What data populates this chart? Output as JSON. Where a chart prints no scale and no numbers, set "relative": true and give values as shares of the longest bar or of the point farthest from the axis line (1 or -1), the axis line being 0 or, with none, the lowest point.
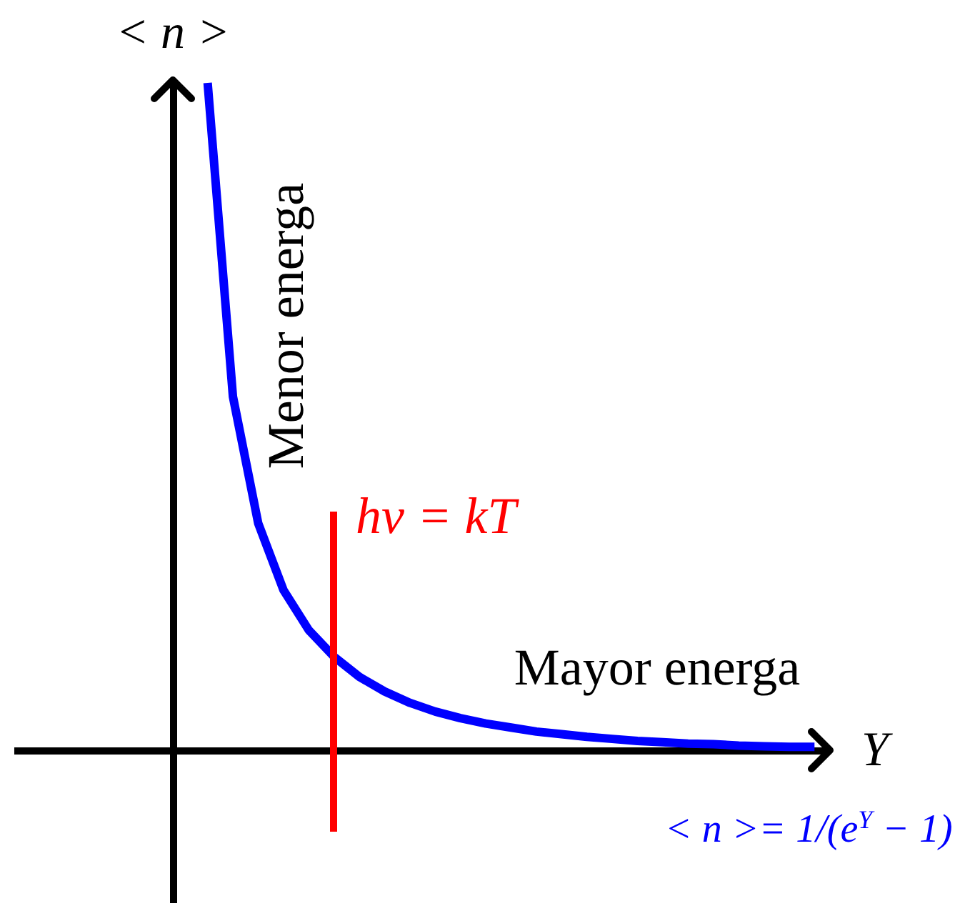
{
  "chart_data": {
    "type": "line",
    "xlabel": "Y",
    "ylabel": "< n >",
    "relative": true,
    "categories": [
      null,
      null,
      null,
      null,
      null,
      null,
      null,
      null,
      null,
      null,
      null,
      null,
      null,
      null,
      null,
      null,
      null,
      null,
      null,
      null,
      null,
      null,
      null,
      null,
      null
    ],
    "series": [
      {
        "name": "< n >= 1/(e$^{Y}$ − 1)",
        "color": "#0000ff",
        "values": [
          1,
          0.53,
          0.34,
          0.24,
          0.18,
          0.14,
          0.11,
          0.088,
          0.071,
          0.058,
          0.048,
          0.04,
          0.034,
          0.028,
          0.024,
          0.02,
          0.017,
          0.014,
          0.012,
          0.01,
          0.009,
          0.007,
          0.006,
          0.005,
          0.005
        ]
      }
    ],
    "annotations": [
      "Menor energa",
      "hν = kT",
      "Mayor energa"
    ],
    "marker": "none",
    "line_style": "solid",
    "grid": false,
    "legend": false,
    "tick_labels": false
  }
}
